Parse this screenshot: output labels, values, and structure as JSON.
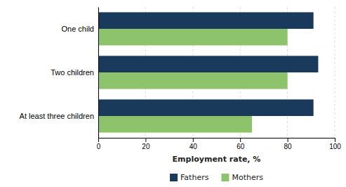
{
  "chart_data": {
    "type": "bar",
    "orientation": "horizontal",
    "categories": [
      "One child",
      "Two children",
      "At least three children"
    ],
    "series": [
      {
        "name": "Fathers",
        "color": "#1a3a5c",
        "values": [
          91,
          93,
          91
        ]
      },
      {
        "name": "Mothers",
        "color": "#8dc46b",
        "values": [
          80,
          80,
          65
        ]
      }
    ],
    "xlabel": "Employment rate, %",
    "xlim": [
      0,
      100
    ],
    "xticks": [
      0,
      20,
      40,
      60,
      80,
      100
    ],
    "grid": true,
    "legend": "bottom"
  }
}
